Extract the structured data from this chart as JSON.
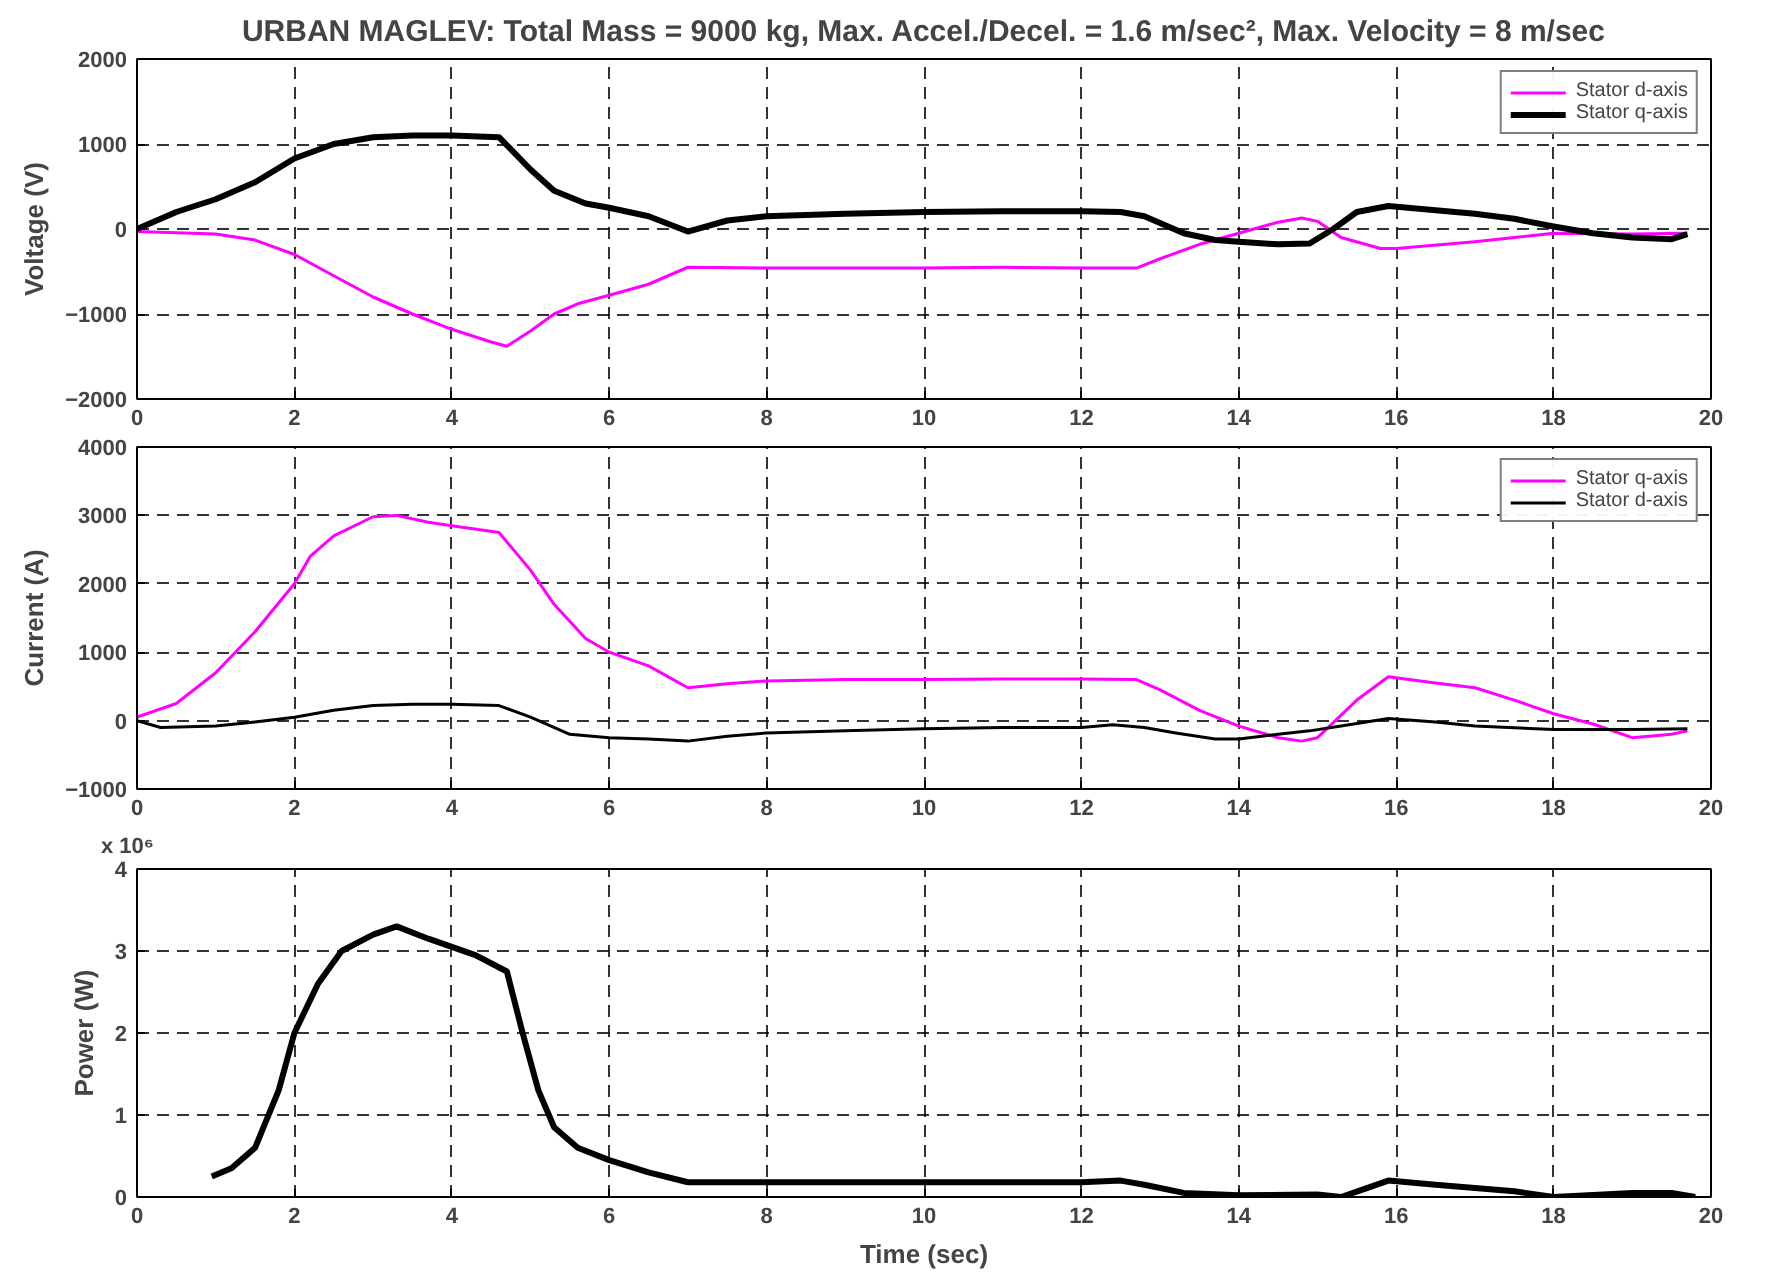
{
  "chart_data": [
    {
      "type": "line",
      "title": "URBAN MAGLEV: Total Mass = 9000 kg, Max. Accel./Decel. = 1.6 m/sec², Max. Velocity = 8 m/sec",
      "ylabel": "Voltage (V)",
      "xlim": [
        0,
        20
      ],
      "xticks": [
        0,
        2,
        4,
        6,
        8,
        10,
        12,
        14,
        16,
        18,
        20
      ],
      "ylim": [
        -2000,
        2000
      ],
      "yticks": [
        -2000,
        -1000,
        0,
        1000,
        2000
      ],
      "grid": true,
      "legend": "top right",
      "line_style": "solid",
      "series": [
        {
          "name": "Stator d-axis",
          "color": "#ff00ff",
          "x": [
            0,
            1,
            1.5,
            2,
            2.5,
            3,
            3.5,
            4,
            4.5,
            4.7,
            5,
            5.3,
            5.6,
            6,
            6.5,
            7,
            8,
            9,
            10,
            11,
            12,
            12.7,
            13,
            13.5,
            14,
            14.5,
            14.8,
            15,
            15.3,
            15.8,
            16,
            17,
            18,
            19,
            19.7
          ],
          "values": [
            -30,
            -60,
            -130,
            -300,
            -550,
            -800,
            -1000,
            -1180,
            -1330,
            -1380,
            -1200,
            -1000,
            -880,
            -780,
            -650,
            -450,
            -460,
            -460,
            -460,
            -450,
            -460,
            -460,
            -350,
            -180,
            -50,
            80,
            130,
            90,
            -100,
            -230,
            -230,
            -150,
            -50,
            -60,
            -50
          ]
        },
        {
          "name": "Stator q-axis",
          "color": "#000000",
          "x": [
            0,
            0.5,
            1,
            1.5,
            2,
            2.5,
            3,
            3.5,
            4,
            4.6,
            5,
            5.3,
            5.7,
            6,
            6.5,
            7,
            7.5,
            8,
            9,
            10,
            11,
            12,
            12.5,
            12.8,
            13.3,
            13.7,
            14,
            14.5,
            14.9,
            15.2,
            15.5,
            15.9,
            16.5,
            17,
            17.5,
            18,
            18.5,
            19,
            19.5,
            19.7
          ],
          "values": [
            0,
            200,
            350,
            550,
            830,
            1000,
            1080,
            1100,
            1100,
            1080,
            700,
            450,
            300,
            250,
            150,
            -30,
            100,
            150,
            180,
            200,
            210,
            210,
            200,
            150,
            -50,
            -130,
            -150,
            -180,
            -170,
            0,
            200,
            270,
            220,
            180,
            120,
            30,
            -50,
            -100,
            -120,
            -60
          ]
        }
      ]
    },
    {
      "type": "line",
      "ylabel": "Current (A)",
      "xlim": [
        0,
        20
      ],
      "xticks": [
        0,
        2,
        4,
        6,
        8,
        10,
        12,
        14,
        16,
        18,
        20
      ],
      "ylim": [
        -1000,
        4000
      ],
      "yticks": [
        -1000,
        0,
        1000,
        2000,
        3000,
        4000
      ],
      "grid": true,
      "legend": "top right",
      "line_style": "solid",
      "series": [
        {
          "name": "Stator q-axis",
          "color": "#ff00ff",
          "x": [
            0,
            0.5,
            1,
            1.5,
            2,
            2.2,
            2.5,
            3,
            3.3,
            3.7,
            4,
            4.6,
            5,
            5.3,
            5.7,
            6,
            6.5,
            7,
            7.5,
            8,
            9,
            10,
            11,
            12,
            12.7,
            13,
            13.5,
            14,
            14.5,
            14.8,
            15,
            15.5,
            15.9,
            16.5,
            17,
            17.5,
            18,
            18.5,
            19,
            19.5,
            19.7
          ],
          "values": [
            50,
            250,
            700,
            1300,
            2000,
            2400,
            2700,
            2980,
            3000,
            2900,
            2850,
            2750,
            2200,
            1700,
            1200,
            1000,
            800,
            480,
            540,
            580,
            600,
            600,
            610,
            610,
            600,
            450,
            150,
            -80,
            -250,
            -300,
            -250,
            300,
            640,
            550,
            480,
            300,
            100,
            -50,
            -250,
            -200,
            -150
          ]
        },
        {
          "name": "Stator d-axis",
          "color": "#000000",
          "x": [
            0,
            0.3,
            1,
            1.5,
            2,
            2.5,
            3,
            3.5,
            4,
            4.6,
            5,
            5.5,
            6,
            6.5,
            7,
            7.5,
            8,
            9,
            10,
            11,
            12,
            12.4,
            12.8,
            13.2,
            13.7,
            14,
            14.5,
            14.9,
            15.3,
            15.9,
            16.5,
            17,
            18,
            19,
            19.7
          ],
          "values": [
            0,
            -100,
            -80,
            -20,
            50,
            150,
            220,
            240,
            240,
            220,
            50,
            -200,
            -250,
            -270,
            -300,
            -230,
            -180,
            -150,
            -120,
            -100,
            -100,
            -60,
            -100,
            -180,
            -270,
            -270,
            -200,
            -150,
            -80,
            30,
            -20,
            -80,
            -130,
            -130,
            -120
          ]
        }
      ]
    },
    {
      "type": "line",
      "xlabel": "Time (sec)",
      "ylabel": "Power (W)",
      "annotations": [
        "x 10⁶"
      ],
      "xlim": [
        0,
        20
      ],
      "xticks": [
        0,
        2,
        4,
        6,
        8,
        10,
        12,
        14,
        16,
        18,
        20
      ],
      "ylim": [
        0,
        4
      ],
      "yticks": [
        0,
        1,
        2,
        3,
        4
      ],
      "grid": true,
      "line_style": "solid",
      "series": [
        {
          "color": "#000000",
          "x": [
            0.95,
            1.2,
            1.5,
            1.8,
            2,
            2.3,
            2.6,
            3,
            3.3,
            3.7,
            4,
            4.3,
            4.7,
            4.9,
            5.1,
            5.3,
            5.6,
            6,
            6.5,
            7,
            8,
            10,
            12,
            12.5,
            12.8,
            13.3,
            14,
            15,
            15.3,
            15.6,
            15.9,
            16.5,
            17.5,
            18,
            19,
            19.5,
            19.8
          ],
          "values": [
            0.25,
            0.35,
            0.6,
            1.3,
            2.0,
            2.6,
            3.0,
            3.2,
            3.3,
            3.15,
            3.05,
            2.95,
            2.75,
            2.0,
            1.3,
            0.85,
            0.6,
            0.45,
            0.3,
            0.18,
            0.18,
            0.18,
            0.18,
            0.2,
            0.15,
            0.05,
            0.02,
            0.03,
            0.0,
            0.1,
            0.2,
            0.15,
            0.07,
            0.0,
            0.05,
            0.05,
            0.0
          ]
        }
      ]
    }
  ]
}
